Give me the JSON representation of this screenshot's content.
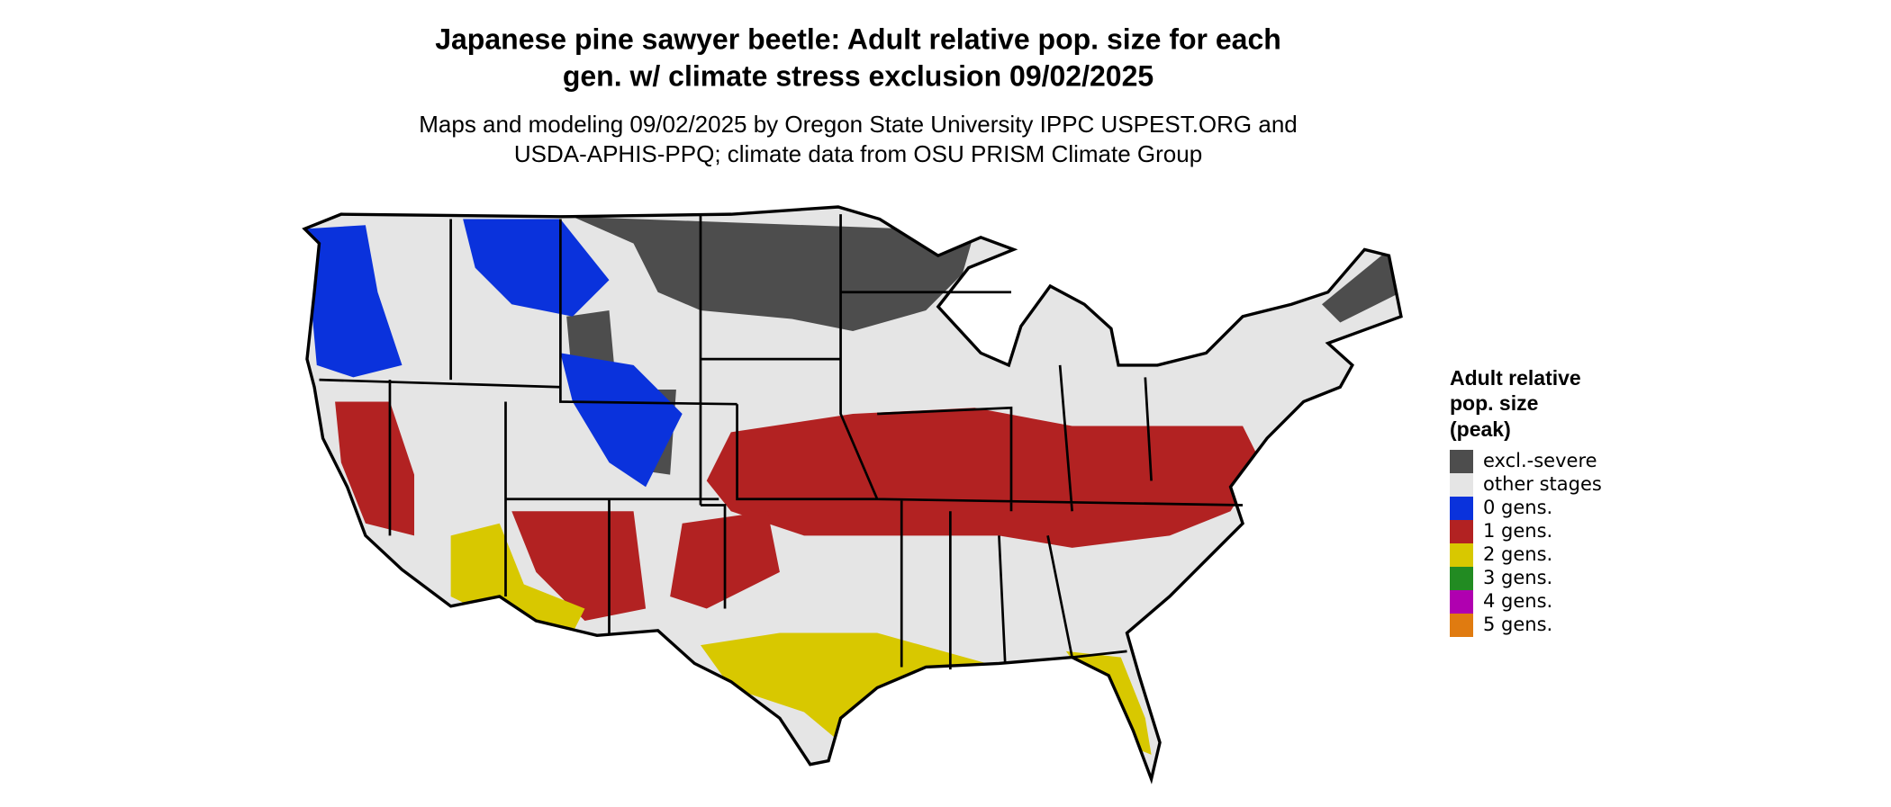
{
  "header": {
    "title": [
      "Japanese pine sawyer beetle: Adult relative pop. size for each",
      "gen. w/ climate stress exclusion 09/02/2025"
    ],
    "subtitle": [
      "Maps and modeling 09/02/2025 by Oregon State University IPPC USPEST.ORG and",
      "USDA-APHIS-PPQ; climate data from OSU PRISM Climate Group"
    ]
  },
  "legend": {
    "title": [
      "Adult relative",
      "pop. size",
      "(peak)"
    ],
    "items": [
      {
        "label": "excl.-severe",
        "color": "#4d4d4d"
      },
      {
        "label": "other stages",
        "color": "#e5e5e5"
      },
      {
        "label": "0 gens.",
        "color": "#0a32dc"
      },
      {
        "label": "1 gens.",
        "color": "#b22222"
      },
      {
        "label": "2 gens.",
        "color": "#d8c800"
      },
      {
        "label": "3 gens.",
        "color": "#228b22"
      },
      {
        "label": "4 gens.",
        "color": "#b000b0"
      },
      {
        "label": "5 gens.",
        "color": "#e07b10"
      }
    ]
  }
}
